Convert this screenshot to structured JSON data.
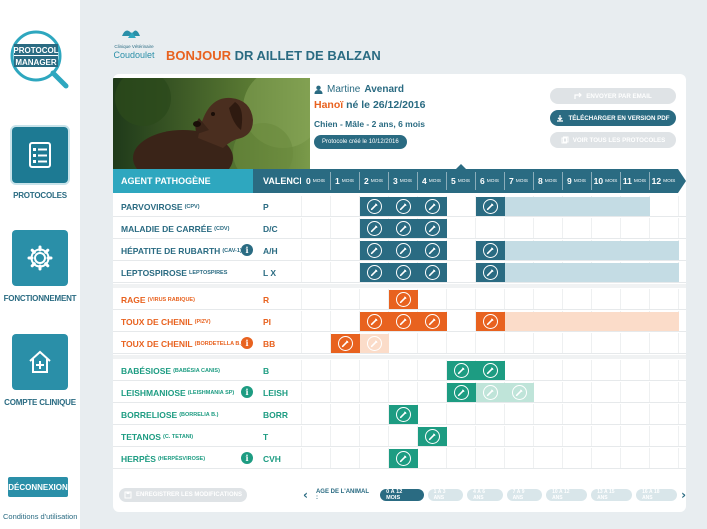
{
  "app": {
    "logo_line1": "PROTOCOL",
    "logo_line2": "MANAGER"
  },
  "sidebar": {
    "items": [
      {
        "label": "PROTOCOLES",
        "icon": "clipboard-list-icon"
      },
      {
        "label": "FONCTIONNEMENT",
        "icon": "gear-icon"
      },
      {
        "label": "COMPTE CLINIQUE",
        "icon": "house-plus-icon"
      }
    ],
    "logout_label": "DÉCONNEXION",
    "conditions_label": "Conditions d'utilisation"
  },
  "clinic": {
    "logo_small": "Clinique Vétérinaire",
    "logo_name": "Coudoulet"
  },
  "header": {
    "greeting_word": "BONJOUR",
    "greeting_name": "DR AILLET DE BALZAN"
  },
  "patient": {
    "first_name": "Martine",
    "last_name": "Avenard",
    "city": "Hanoï",
    "birth_text": "né le 26/12/2016",
    "description": "Chien - Mâle - 2 ans, 6 mois",
    "protocol_created": "Protocole créé le 10/12/2016"
  },
  "actions": {
    "email": "ENVOYER PAR EMAIL",
    "pdf": "TÉLÉCHARGER EN VERSION PDF",
    "all_protocols": "VOIR TOUS LES PROTOCOLES"
  },
  "grid": {
    "header_pathogen": "AGENT PATHOGÈNE",
    "header_valence": "VALENCE",
    "month_unit": "MOIS",
    "months": [
      "0",
      "1",
      "2",
      "3",
      "4",
      "5",
      "6",
      "7",
      "8",
      "9",
      "10",
      "11",
      "12"
    ],
    "current_month_index": 5,
    "groups": [
      {
        "color": "#2a6b82",
        "dark": "#2a6b82",
        "light": "#c4dce4",
        "rows": [
          {
            "name": "PARVOVIROSE",
            "sub": "(CPV)",
            "valence": "P",
            "info": false,
            "cells": [
              0,
              0,
              2,
              2,
              2,
              0,
              2,
              1,
              1,
              1,
              1,
              1,
              0
            ]
          },
          {
            "name": "MALADIE DE CARRÉE",
            "sub": "(CDV)",
            "valence": "D/C",
            "info": false,
            "cells": [
              0,
              0,
              2,
              2,
              2,
              0,
              0,
              0,
              0,
              0,
              0,
              0,
              0
            ]
          },
          {
            "name": "HÉPATITE DE RUBARTH",
            "sub": "(CAV-1)",
            "valence": "A/H",
            "info": true,
            "cells": [
              0,
              0,
              2,
              2,
              2,
              0,
              2,
              1,
              1,
              1,
              1,
              1,
              1
            ]
          },
          {
            "name": "LEPTOSPIROSE",
            "sub": "LEPTOSPIRES",
            "valence": "L X",
            "info": false,
            "cells": [
              0,
              0,
              2,
              2,
              2,
              0,
              2,
              1,
              1,
              1,
              1,
              1,
              1
            ]
          }
        ]
      },
      {
        "color": "#e8621f",
        "dark": "#e8621f",
        "light": "#fbdcc9",
        "rows": [
          {
            "name": "RAGE",
            "sub": "(VIRUS RABIQUE)",
            "valence": "R",
            "info": false,
            "cells": [
              0,
              0,
              0,
              2,
              0,
              0,
              0,
              0,
              0,
              0,
              0,
              0,
              0
            ]
          },
          {
            "name": "TOUX DE CHENIL",
            "sub": "(PIZV)",
            "valence": "PI",
            "info": false,
            "cells": [
              0,
              0,
              2,
              2,
              2,
              0,
              2,
              1,
              1,
              1,
              1,
              1,
              1
            ]
          },
          {
            "name": "TOUX DE CHENIL",
            "sub": "(BORDETELLA B.)",
            "valence": "BB",
            "info": true,
            "cells": [
              0,
              2,
              3,
              0,
              0,
              0,
              0,
              0,
              0,
              0,
              0,
              0,
              0
            ]
          }
        ]
      },
      {
        "color": "#1d9c82",
        "dark": "#1d9c82",
        "light": "#bfe4d9",
        "rows": [
          {
            "name": "BABÉSIOSE",
            "sub": "(BABÉSIA CANIS)",
            "valence": "B",
            "info": false,
            "cells": [
              0,
              0,
              0,
              0,
              0,
              2,
              2,
              0,
              0,
              0,
              0,
              0,
              0
            ]
          },
          {
            "name": "LEISHMANIOSE",
            "sub": "(LEISHMANIA SP)",
            "valence": "LEISH",
            "info": true,
            "cells": [
              0,
              0,
              0,
              0,
              0,
              2,
              3,
              3,
              0,
              0,
              0,
              0,
              0
            ]
          },
          {
            "name": "BORRELIOSE",
            "sub": "(BORRELIA B.)",
            "valence": "BORR",
            "info": false,
            "cells": [
              0,
              0,
              0,
              2,
              0,
              0,
              0,
              0,
              0,
              0,
              0,
              0,
              0
            ]
          },
          {
            "name": "TETANOS",
            "sub": "(C. TETANI)",
            "valence": "T",
            "info": false,
            "cells": [
              0,
              0,
              0,
              0,
              2,
              0,
              0,
              0,
              0,
              0,
              0,
              0,
              0
            ]
          },
          {
            "name": "HERPÈS",
            "sub": "(HERPÈSVIROSE)",
            "valence": "CVH",
            "info": true,
            "cells": [
              0,
              0,
              0,
              2,
              0,
              0,
              0,
              0,
              0,
              0,
              0,
              0,
              0
            ]
          }
        ]
      }
    ]
  },
  "footer": {
    "save_label": "ENREGISTRER LES MODIFICATIONS",
    "age_label": "AGE DE L'ANIMAL :",
    "age_ranges": [
      "0 À 12 MOIS",
      "1 À 3 ANS",
      "4 À 6 ANS",
      "7 À 9 ANS",
      "10 À 12 ANS",
      "13 À 15 ANS",
      "16 À 18 ANS"
    ],
    "active_age_index": 0
  }
}
